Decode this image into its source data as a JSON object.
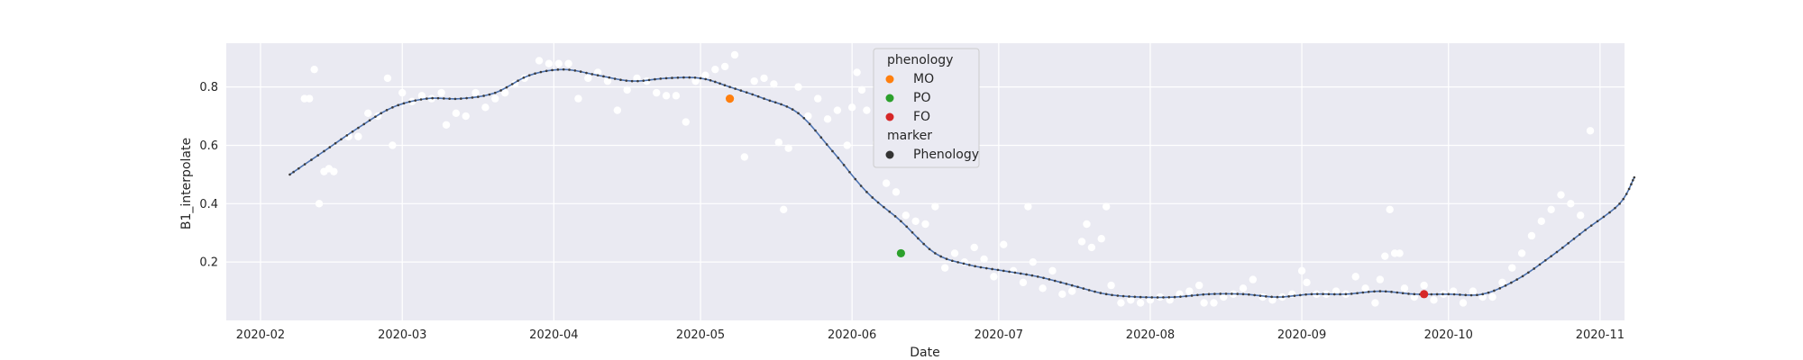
{
  "chart_data": {
    "type": "scatter",
    "title": "",
    "xlabel": "Date",
    "ylabel": "B1_interpolate",
    "xlim": [
      "2020-01-25",
      "2020-11-06"
    ],
    "ylim": [
      0.0,
      0.95
    ],
    "x_ticks": [
      "2020-02-01",
      "2020-03-01",
      "2020-04-01",
      "2020-05-01",
      "2020-06-01",
      "2020-07-01",
      "2020-08-01",
      "2020-09-01",
      "2020-10-01",
      "2020-11-01"
    ],
    "x_tick_labels": [
      "2020-02",
      "2020-03",
      "2020-04",
      "2020-05",
      "2020-06",
      "2020-07",
      "2020-08",
      "2020-09",
      "2020-10",
      "2020-11"
    ],
    "y_ticks": [
      0.2,
      0.4,
      0.6,
      0.8
    ],
    "y_tick_labels": [
      "0.2",
      "0.4",
      "0.6",
      "0.8"
    ],
    "grid": true,
    "legend_position": "top-center",
    "colors": {
      "background": "#eaeaf2",
      "grid": "#ffffff",
      "observations": "#ffffff",
      "curve_line": "#4c72b0",
      "curve_marker": "#3a3a3a",
      "MO": "#ff7f0e",
      "PO": "#2ca02c",
      "FO": "#d62728",
      "marker_phenology": "#333333"
    },
    "legend": {
      "hue_title": "phenology",
      "hue_items": [
        {
          "label": "MO",
          "color": "#ff7f0e"
        },
        {
          "label": "PO",
          "color": "#2ca02c"
        },
        {
          "label": "FO",
          "color": "#d62728"
        }
      ],
      "style_title": "marker",
      "style_items": [
        {
          "label": "Phenology",
          "color": "#333333"
        }
      ]
    },
    "phenology_points": [
      {
        "label": "MO",
        "date": "2020-05-07",
        "value": 0.76,
        "color": "#ff7f0e"
      },
      {
        "label": "PO",
        "date": "2020-06-11",
        "value": 0.23,
        "color": "#2ca02c"
      },
      {
        "label": "FO",
        "date": "2020-09-26",
        "value": 0.09,
        "color": "#d62728"
      }
    ],
    "curve_anchors": [
      [
        "2020-02-07",
        0.5
      ],
      [
        "2020-02-14",
        0.58
      ],
      [
        "2020-02-21",
        0.66
      ],
      [
        "2020-02-28",
        0.73
      ],
      [
        "2020-03-06",
        0.76
      ],
      [
        "2020-03-13",
        0.76
      ],
      [
        "2020-03-20",
        0.78
      ],
      [
        "2020-03-27",
        0.84
      ],
      [
        "2020-04-03",
        0.86
      ],
      [
        "2020-04-10",
        0.84
      ],
      [
        "2020-04-17",
        0.82
      ],
      [
        "2020-04-24",
        0.83
      ],
      [
        "2020-05-01",
        0.83
      ],
      [
        "2020-05-07",
        0.8
      ],
      [
        "2020-05-14",
        0.76
      ],
      [
        "2020-05-21",
        0.71
      ],
      [
        "2020-05-28",
        0.58
      ],
      [
        "2020-06-04",
        0.44
      ],
      [
        "2020-06-11",
        0.34
      ],
      [
        "2020-06-18",
        0.23
      ],
      [
        "2020-06-25",
        0.19
      ],
      [
        "2020-07-02",
        0.17
      ],
      [
        "2020-07-09",
        0.15
      ],
      [
        "2020-07-16",
        0.12
      ],
      [
        "2020-07-23",
        0.09
      ],
      [
        "2020-07-30",
        0.08
      ],
      [
        "2020-08-06",
        0.08
      ],
      [
        "2020-08-13",
        0.09
      ],
      [
        "2020-08-20",
        0.09
      ],
      [
        "2020-08-27",
        0.08
      ],
      [
        "2020-09-03",
        0.09
      ],
      [
        "2020-09-10",
        0.09
      ],
      [
        "2020-09-17",
        0.1
      ],
      [
        "2020-09-24",
        0.09
      ],
      [
        "2020-10-01",
        0.09
      ],
      [
        "2020-10-08",
        0.09
      ],
      [
        "2020-10-15",
        0.14
      ],
      [
        "2020-10-22",
        0.22
      ],
      [
        "2020-10-29",
        0.31
      ],
      [
        "2020-11-05",
        0.4
      ],
      [
        "2020-11-08",
        0.49
      ]
    ],
    "observations": [
      [
        "2020-02-10",
        0.76
      ],
      [
        "2020-02-11",
        0.76
      ],
      [
        "2020-02-12",
        0.86
      ],
      [
        "2020-02-13",
        0.4
      ],
      [
        "2020-02-14",
        0.51
      ],
      [
        "2020-02-15",
        0.52
      ],
      [
        "2020-02-16",
        0.51
      ],
      [
        "2020-02-19",
        0.63
      ],
      [
        "2020-02-21",
        0.63
      ],
      [
        "2020-02-23",
        0.71
      ],
      [
        "2020-02-25",
        0.7
      ],
      [
        "2020-02-27",
        0.83
      ],
      [
        "2020-02-28",
        0.6
      ],
      [
        "2020-03-01",
        0.78
      ],
      [
        "2020-03-03",
        0.75
      ],
      [
        "2020-03-05",
        0.77
      ],
      [
        "2020-03-07",
        0.76
      ],
      [
        "2020-03-09",
        0.78
      ],
      [
        "2020-03-10",
        0.67
      ],
      [
        "2020-03-12",
        0.71
      ],
      [
        "2020-03-14",
        0.7
      ],
      [
        "2020-03-16",
        0.78
      ],
      [
        "2020-03-18",
        0.73
      ],
      [
        "2020-03-20",
        0.76
      ],
      [
        "2020-03-22",
        0.78
      ],
      [
        "2020-03-24",
        0.81
      ],
      [
        "2020-03-26",
        0.83
      ],
      [
        "2020-03-29",
        0.89
      ],
      [
        "2020-03-31",
        0.88
      ],
      [
        "2020-04-02",
        0.88
      ],
      [
        "2020-04-04",
        0.88
      ],
      [
        "2020-04-06",
        0.76
      ],
      [
        "2020-04-08",
        0.83
      ],
      [
        "2020-04-10",
        0.85
      ],
      [
        "2020-04-12",
        0.82
      ],
      [
        "2020-04-14",
        0.72
      ],
      [
        "2020-04-16",
        0.79
      ],
      [
        "2020-04-18",
        0.83
      ],
      [
        "2020-04-20",
        0.82
      ],
      [
        "2020-04-22",
        0.78
      ],
      [
        "2020-04-24",
        0.77
      ],
      [
        "2020-04-26",
        0.77
      ],
      [
        "2020-04-28",
        0.68
      ],
      [
        "2020-04-30",
        0.82
      ],
      [
        "2020-05-02",
        0.84
      ],
      [
        "2020-05-04",
        0.86
      ],
      [
        "2020-05-06",
        0.87
      ],
      [
        "2020-05-08",
        0.91
      ],
      [
        "2020-05-10",
        0.56
      ],
      [
        "2020-05-12",
        0.82
      ],
      [
        "2020-05-14",
        0.83
      ],
      [
        "2020-05-16",
        0.81
      ],
      [
        "2020-05-17",
        0.61
      ],
      [
        "2020-05-18",
        0.38
      ],
      [
        "2020-05-19",
        0.59
      ],
      [
        "2020-05-21",
        0.8
      ],
      [
        "2020-05-23",
        0.7
      ],
      [
        "2020-05-25",
        0.76
      ],
      [
        "2020-05-27",
        0.69
      ],
      [
        "2020-05-29",
        0.72
      ],
      [
        "2020-05-31",
        0.6
      ],
      [
        "2020-06-01",
        0.73
      ],
      [
        "2020-06-02",
        0.85
      ],
      [
        "2020-06-03",
        0.79
      ],
      [
        "2020-06-04",
        0.72
      ],
      [
        "2020-06-06",
        0.61
      ],
      [
        "2020-06-08",
        0.47
      ],
      [
        "2020-06-10",
        0.44
      ],
      [
        "2020-06-12",
        0.36
      ],
      [
        "2020-06-14",
        0.34
      ],
      [
        "2020-06-16",
        0.33
      ],
      [
        "2020-06-18",
        0.39
      ],
      [
        "2020-06-20",
        0.18
      ],
      [
        "2020-06-22",
        0.23
      ],
      [
        "2020-06-24",
        0.2
      ],
      [
        "2020-06-26",
        0.25
      ],
      [
        "2020-06-28",
        0.21
      ],
      [
        "2020-06-30",
        0.15
      ],
      [
        "2020-07-02",
        0.26
      ],
      [
        "2020-07-04",
        0.17
      ],
      [
        "2020-07-06",
        0.13
      ],
      [
        "2020-07-07",
        0.39
      ],
      [
        "2020-07-08",
        0.2
      ],
      [
        "2020-07-10",
        0.11
      ],
      [
        "2020-07-12",
        0.17
      ],
      [
        "2020-07-14",
        0.09
      ],
      [
        "2020-07-16",
        0.1
      ],
      [
        "2020-07-18",
        0.27
      ],
      [
        "2020-07-19",
        0.33
      ],
      [
        "2020-07-20",
        0.25
      ],
      [
        "2020-07-22",
        0.28
      ],
      [
        "2020-07-23",
        0.39
      ],
      [
        "2020-07-24",
        0.12
      ],
      [
        "2020-07-26",
        0.06
      ],
      [
        "2020-07-28",
        0.07
      ],
      [
        "2020-07-30",
        0.06
      ],
      [
        "2020-08-01",
        0.07
      ],
      [
        "2020-08-03",
        0.08
      ],
      [
        "2020-08-05",
        0.07
      ],
      [
        "2020-08-07",
        0.09
      ],
      [
        "2020-08-09",
        0.1
      ],
      [
        "2020-08-11",
        0.12
      ],
      [
        "2020-08-12",
        0.06
      ],
      [
        "2020-08-14",
        0.06
      ],
      [
        "2020-08-16",
        0.08
      ],
      [
        "2020-08-18",
        0.09
      ],
      [
        "2020-08-20",
        0.11
      ],
      [
        "2020-08-22",
        0.14
      ],
      [
        "2020-08-24",
        0.08
      ],
      [
        "2020-08-26",
        0.07
      ],
      [
        "2020-08-28",
        0.08
      ],
      [
        "2020-08-30",
        0.09
      ],
      [
        "2020-09-01",
        0.17
      ],
      [
        "2020-09-02",
        0.13
      ],
      [
        "2020-09-04",
        0.09
      ],
      [
        "2020-09-06",
        0.09
      ],
      [
        "2020-09-08",
        0.1
      ],
      [
        "2020-09-10",
        0.09
      ],
      [
        "2020-09-12",
        0.15
      ],
      [
        "2020-09-14",
        0.11
      ],
      [
        "2020-09-16",
        0.06
      ],
      [
        "2020-09-17",
        0.14
      ],
      [
        "2020-09-18",
        0.22
      ],
      [
        "2020-09-19",
        0.38
      ],
      [
        "2020-09-20",
        0.23
      ],
      [
        "2020-09-21",
        0.23
      ],
      [
        "2020-09-22",
        0.11
      ],
      [
        "2020-09-24",
        0.08
      ],
      [
        "2020-09-26",
        0.12
      ],
      [
        "2020-09-28",
        0.07
      ],
      [
        "2020-09-30",
        0.09
      ],
      [
        "2020-10-02",
        0.1
      ],
      [
        "2020-10-04",
        0.06
      ],
      [
        "2020-10-06",
        0.1
      ],
      [
        "2020-10-08",
        0.08
      ],
      [
        "2020-10-10",
        0.08
      ],
      [
        "2020-10-12",
        0.13
      ],
      [
        "2020-10-14",
        0.18
      ],
      [
        "2020-10-16",
        0.23
      ],
      [
        "2020-10-18",
        0.29
      ],
      [
        "2020-10-20",
        0.34
      ],
      [
        "2020-10-22",
        0.38
      ],
      [
        "2020-10-24",
        0.43
      ],
      [
        "2020-10-26",
        0.4
      ],
      [
        "2020-10-28",
        0.36
      ],
      [
        "2020-10-30",
        0.65
      ]
    ]
  }
}
